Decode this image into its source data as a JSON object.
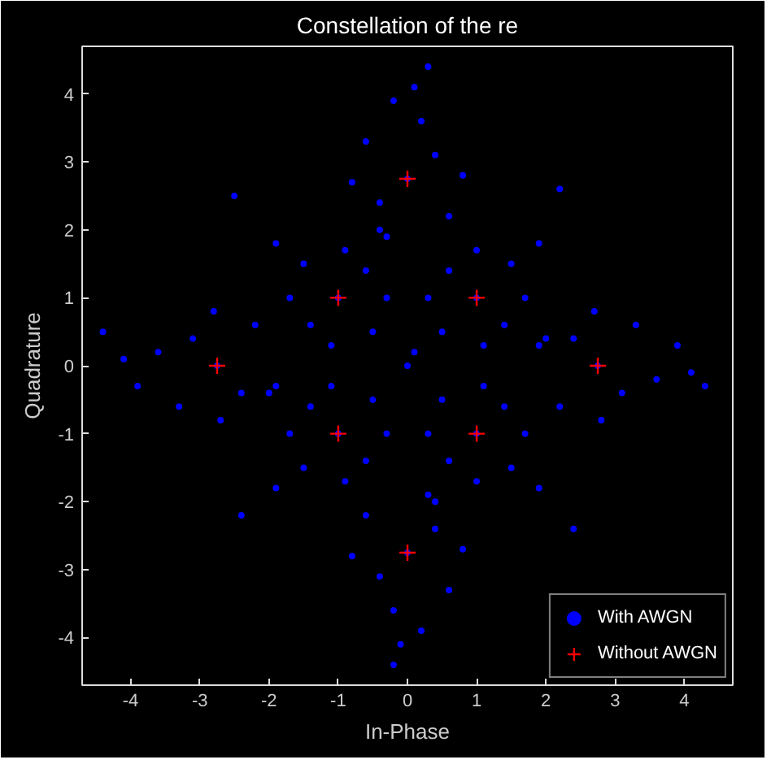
{
  "chart_data": {
    "type": "scatter",
    "title": "Constellation of the re",
    "xlabel": "In-Phase",
    "ylabel": "Quadrature",
    "xlim": [
      -4.7,
      4.7
    ],
    "ylim": [
      -4.7,
      4.7
    ],
    "xticks": [
      -4,
      -3,
      -2,
      -1,
      0,
      1,
      2,
      3,
      4
    ],
    "yticks": [
      -4,
      -3,
      -2,
      -1,
      0,
      1,
      2,
      3,
      4
    ],
    "grid": false,
    "legend": "bottom right",
    "series": [
      {
        "name": "With AWGN",
        "color": "#0000ff",
        "marker": "circle",
        "x": [
          0,
          0.4,
          -0.4,
          0.6,
          -0.6,
          0.2,
          -0.3,
          0.8,
          -0.8,
          0.1,
          -0.2,
          0,
          -0.4,
          0.4,
          -0.6,
          0.6,
          -0.2,
          0.3,
          -0.8,
          0.8,
          -0.1,
          0.2,
          -2.75,
          -3.1,
          -2.4,
          -2.2,
          -3.3,
          -3.6,
          -1.9,
          -2.8,
          -2.7,
          -4.1,
          -3.9,
          2.75,
          3.1,
          2.4,
          2.2,
          3.3,
          3.6,
          1.9,
          2.8,
          2.7,
          4.1,
          3.9,
          -1,
          -0.6,
          -1.4,
          -0.5,
          -1.5,
          -0.9,
          -1.7,
          -0.3,
          -1.1,
          -1.9,
          -0.4,
          1,
          1.4,
          0.6,
          0.5,
          1.5,
          1.7,
          1.0,
          1.1,
          0.3,
          1.9,
          2.0,
          -1,
          -0.6,
          -1.4,
          -0.5,
          -1.5,
          -0.9,
          -1.7,
          -0.3,
          -1.1,
          -1.9,
          -2.0,
          1,
          1.4,
          0.6,
          0.5,
          1.5,
          1.7,
          1.0,
          1.1,
          0.3,
          1.9,
          0.4,
          0,
          -4.4,
          4.3,
          0.3,
          -0.2,
          -2.5,
          2.4,
          2.2,
          -2.4,
          0.1
        ],
        "values": [
          2.75,
          3.1,
          2.4,
          2.2,
          3.3,
          3.6,
          1.9,
          2.8,
          2.7,
          4.1,
          3.9,
          -2.75,
          -3.1,
          -2.4,
          -2.2,
          -3.3,
          -3.6,
          -1.9,
          -2.8,
          -2.7,
          -4.1,
          -3.9,
          0,
          0.4,
          -0.4,
          0.6,
          -0.6,
          0.2,
          -0.3,
          0.8,
          -0.8,
          0.1,
          -0.3,
          0,
          -0.4,
          0.4,
          -0.6,
          0.6,
          -0.2,
          0.3,
          -0.8,
          0.8,
          -0.1,
          0.3,
          1,
          1.4,
          0.6,
          0.5,
          1.5,
          1.7,
          1.0,
          1.0,
          0.3,
          1.8,
          2.0,
          1,
          0.6,
          1.4,
          0.5,
          1.5,
          1.0,
          1.7,
          0.3,
          1.0,
          1.8,
          0.4,
          -1,
          -1.4,
          -0.6,
          -0.5,
          -1.5,
          -1.7,
          -1.0,
          -1.0,
          -0.3,
          -1.8,
          -0.4,
          -1,
          -0.6,
          -1.4,
          -0.5,
          -1.5,
          -1.0,
          -1.7,
          -0.3,
          -1.0,
          -1.8,
          -2.0,
          0,
          0.5,
          -0.3,
          4.4,
          -4.4,
          2.5,
          -2.4,
          2.6,
          -2.2,
          0.2
        ]
      },
      {
        "name": "Without AWGN",
        "color": "#ff0000",
        "marker": "cross",
        "x": [
          0,
          -1,
          1,
          -2.75,
          2.75,
          -1,
          1,
          0
        ],
        "values": [
          2.75,
          1,
          1,
          0,
          0,
          -1,
          -1,
          -2.75
        ]
      }
    ]
  }
}
